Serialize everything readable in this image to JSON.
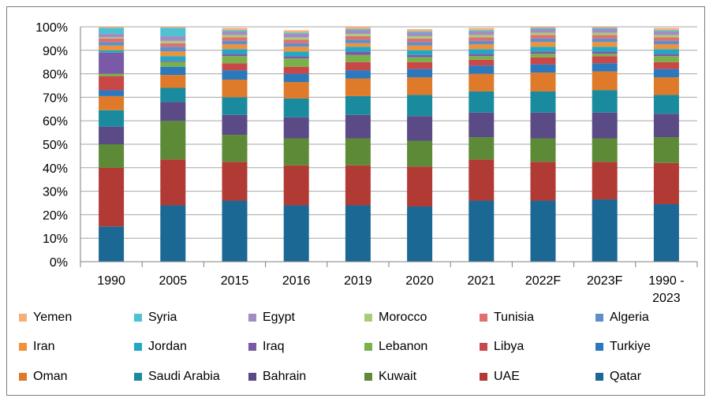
{
  "chart_data": {
    "type": "bar",
    "stacked": true,
    "categories": [
      "1990",
      "2005",
      "2015",
      "2016",
      "2019",
      "2020",
      "2021",
      "2022F",
      "2023F",
      "1990 -\n2023"
    ],
    "y_ticks": [
      "0%",
      "10%",
      "20%",
      "30%",
      "40%",
      "50%",
      "60%",
      "70%",
      "80%",
      "90%",
      "100%"
    ],
    "ylim": [
      0,
      100
    ],
    "legend_position": "bottom",
    "series": [
      {
        "name": "Qatar",
        "color": "#1b6895",
        "values": [
          15,
          24,
          26,
          24,
          24,
          23.5,
          26,
          26,
          26.5,
          24.5
        ]
      },
      {
        "name": "UAE",
        "color": "#b23a35",
        "values": [
          25,
          19.5,
          16.5,
          17,
          17,
          17,
          17.5,
          16.5,
          16,
          17.5
        ]
      },
      {
        "name": "Kuwait",
        "color": "#5c8a36",
        "values": [
          10,
          16.5,
          11.5,
          11.5,
          11.5,
          11,
          9.5,
          10,
          10,
          11
        ]
      },
      {
        "name": "Bahrain",
        "color": "#5a4a85",
        "values": [
          7.5,
          8,
          8.5,
          9,
          10,
          10.5,
          10.5,
          11,
          11,
          10
        ]
      },
      {
        "name": "Saudi Arabia",
        "color": "#1a8a9e",
        "values": [
          7,
          6,
          7.5,
          8,
          8,
          9,
          9,
          9,
          9.5,
          8
        ]
      },
      {
        "name": "Oman",
        "color": "#de7a2a",
        "values": [
          6,
          5.5,
          7.5,
          7,
          7.5,
          7.5,
          7.5,
          8,
          8,
          7.5
        ]
      },
      {
        "name": "Turkiye",
        "color": "#2b78bd",
        "values": [
          2.5,
          3.5,
          4,
          3.5,
          3.5,
          3.5,
          3.5,
          3.5,
          3.5,
          3.5
        ]
      },
      {
        "name": "Libya",
        "color": "#c84848",
        "values": [
          6,
          0,
          3,
          3,
          3.5,
          3,
          2.5,
          3,
          3,
          3
        ]
      },
      {
        "name": "Lebanon",
        "color": "#7ab24a",
        "values": [
          1,
          2,
          3,
          3.5,
          3,
          2,
          1.5,
          1.5,
          1,
          2.5
        ]
      },
      {
        "name": "Iraq",
        "color": "#7a5aa6",
        "values": [
          9,
          0.5,
          1,
          1,
          1.5,
          1,
          1,
          1,
          1,
          1
        ]
      },
      {
        "name": "Jordan",
        "color": "#1fa9c4",
        "values": [
          1,
          2,
          2,
          2,
          2,
          2,
          2,
          2,
          2,
          2
        ]
      },
      {
        "name": "Iran",
        "color": "#f0923a",
        "values": [
          2,
          2,
          2,
          2,
          1.5,
          2,
          2,
          2,
          2,
          2
        ]
      },
      {
        "name": "Algeria",
        "color": "#5f8fc8",
        "values": [
          1.5,
          2,
          1.5,
          1.5,
          1.5,
          1.5,
          1.5,
          1.5,
          1.5,
          1.5
        ]
      },
      {
        "name": "Tunisia",
        "color": "#e07070",
        "values": [
          1.5,
          1.5,
          1.5,
          1.5,
          1.5,
          1.5,
          1.5,
          1.5,
          1.5,
          1.5
        ]
      },
      {
        "name": "Morocco",
        "color": "#a8cc7a",
        "values": [
          0.5,
          1,
          1,
          1,
          1,
          1,
          1,
          1,
          1,
          1
        ]
      },
      {
        "name": "Egypt",
        "color": "#a48cc2",
        "values": [
          1.5,
          2,
          1.5,
          1.5,
          1.5,
          1.5,
          1.5,
          1.5,
          1.5,
          1.5
        ]
      },
      {
        "name": "Syria",
        "color": "#4cc2d2",
        "values": [
          2.5,
          3.5,
          0.5,
          0.5,
          0.5,
          0.5,
          0.5,
          0.5,
          0.5,
          0.5
        ]
      },
      {
        "name": "Yemen",
        "color": "#f5b07a",
        "values": [
          0.5,
          0.5,
          1,
          1,
          1,
          1,
          1,
          1,
          1,
          1
        ]
      }
    ],
    "legend_order": [
      [
        "Yemen",
        "Syria",
        "Egypt",
        "Morocco",
        "Tunisia",
        "Algeria"
      ],
      [
        "Iran",
        "Jordan",
        "Iraq",
        "Lebanon",
        "Libya",
        "Turkiye"
      ],
      [
        "Oman",
        "Saudi Arabia",
        "Bahrain",
        "Kuwait",
        "UAE",
        "Qatar"
      ]
    ]
  }
}
